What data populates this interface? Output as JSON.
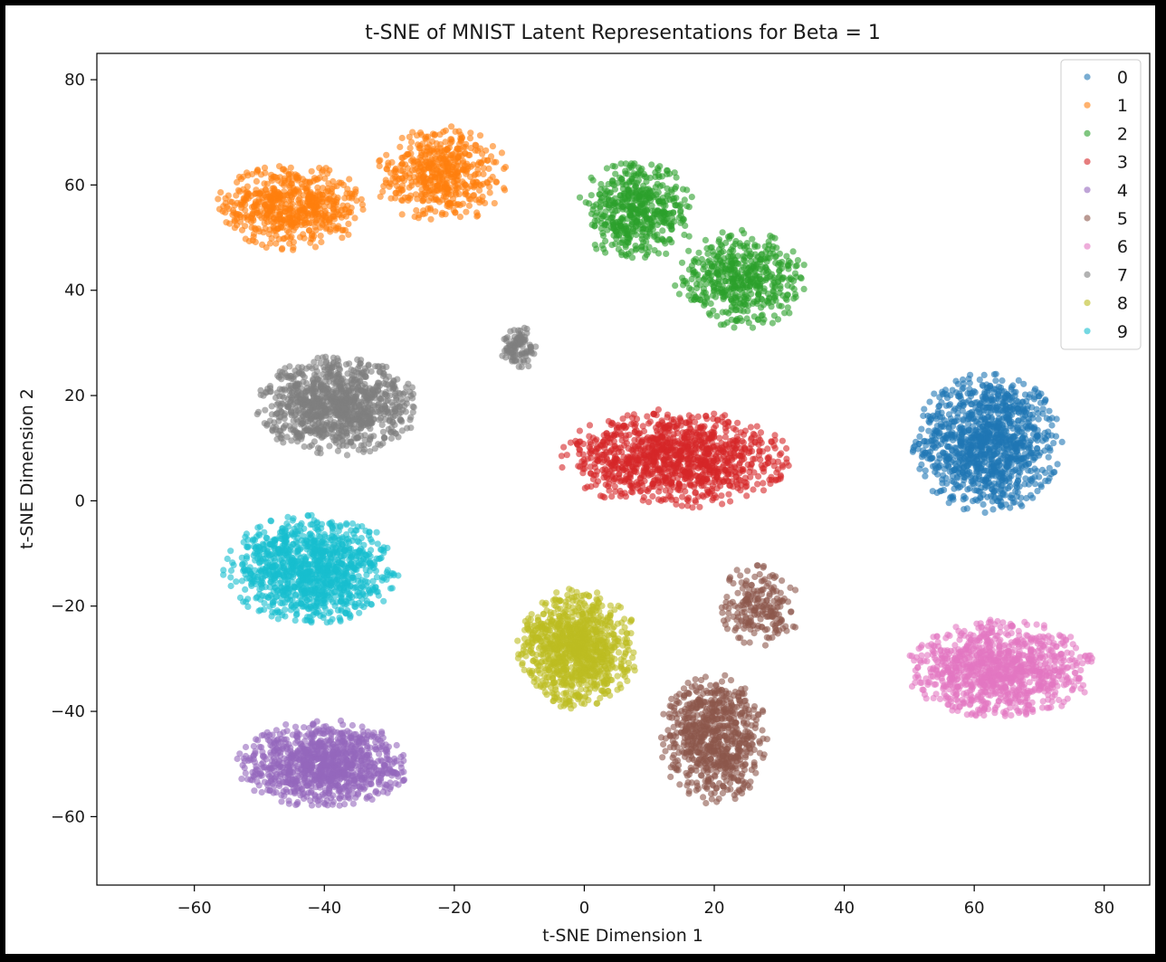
{
  "chart_data": {
    "type": "scatter",
    "title": "t-SNE of MNIST Latent Representations for Beta = 1",
    "xlabel": "t-SNE Dimension 1",
    "ylabel": "t-SNE Dimension 2",
    "xlim": [
      -75,
      87
    ],
    "ylim": [
      -73,
      85
    ],
    "x_ticks": [
      -60,
      -40,
      -20,
      0,
      20,
      40,
      60,
      80
    ],
    "x_tick_labels": [
      "−60",
      "−40",
      "−20",
      "0",
      "20",
      "40",
      "60",
      "80"
    ],
    "y_ticks": [
      80,
      60,
      40,
      20,
      0,
      -20,
      -40,
      -60
    ],
    "y_tick_labels": [
      "80",
      "60",
      "40",
      "20",
      "0",
      "−20",
      "−40",
      "−60"
    ],
    "grid": false,
    "legend_position": "top-right",
    "marker_opacity": 0.6,
    "series": [
      {
        "name": "0",
        "color": "#1f77b4",
        "clusters": [
          {
            "center": [
              62,
              11
            ],
            "spread": [
              11,
              13
            ],
            "count": 1100
          }
        ]
      },
      {
        "name": "1",
        "color": "#ff7f0e",
        "clusters": [
          {
            "center": [
              -45,
              56
            ],
            "spread": [
              11,
              8
            ],
            "count": 600
          },
          {
            "center": [
              -22,
              62
            ],
            "spread": [
              10,
              9
            ],
            "count": 500
          }
        ]
      },
      {
        "name": "2",
        "color": "#2ca02c",
        "clusters": [
          {
            "center": [
              8,
              55
            ],
            "spread": [
              9,
              9
            ],
            "count": 500
          },
          {
            "center": [
              24,
              42
            ],
            "spread": [
              10,
              9
            ],
            "count": 500
          }
        ]
      },
      {
        "name": "3",
        "color": "#d62728",
        "clusters": [
          {
            "center": [
              14,
              8
            ],
            "spread": [
              17,
              9
            ],
            "count": 1100
          }
        ]
      },
      {
        "name": "4",
        "color": "#9467bd",
        "clusters": [
          {
            "center": [
              -40,
              -50
            ],
            "spread": [
              13,
              8
            ],
            "count": 1000
          }
        ]
      },
      {
        "name": "5",
        "color": "#8c564b",
        "clusters": [
          {
            "center": [
              20,
              -45
            ],
            "spread": [
              8,
              12
            ],
            "count": 700
          },
          {
            "center": [
              27,
              -20
            ],
            "spread": [
              6,
              8
            ],
            "count": 200
          }
        ]
      },
      {
        "name": "6",
        "color": "#e377c2",
        "clusters": [
          {
            "center": [
              64,
              -32
            ],
            "spread": [
              14,
              9
            ],
            "count": 1000
          }
        ]
      },
      {
        "name": "7",
        "color": "#7f7f7f",
        "clusters": [
          {
            "center": [
              -38,
              18
            ],
            "spread": [
              12,
              9
            ],
            "count": 1000
          },
          {
            "center": [
              -10,
              29
            ],
            "spread": [
              3,
              4
            ],
            "count": 100
          }
        ]
      },
      {
        "name": "8",
        "color": "#bcbd22",
        "clusters": [
          {
            "center": [
              -1,
              -28
            ],
            "spread": [
              9,
              11
            ],
            "count": 1000
          }
        ]
      },
      {
        "name": "9",
        "color": "#17becf",
        "clusters": [
          {
            "center": [
              -42,
              -13
            ],
            "spread": [
              13,
              10
            ],
            "count": 1100
          }
        ]
      }
    ]
  }
}
